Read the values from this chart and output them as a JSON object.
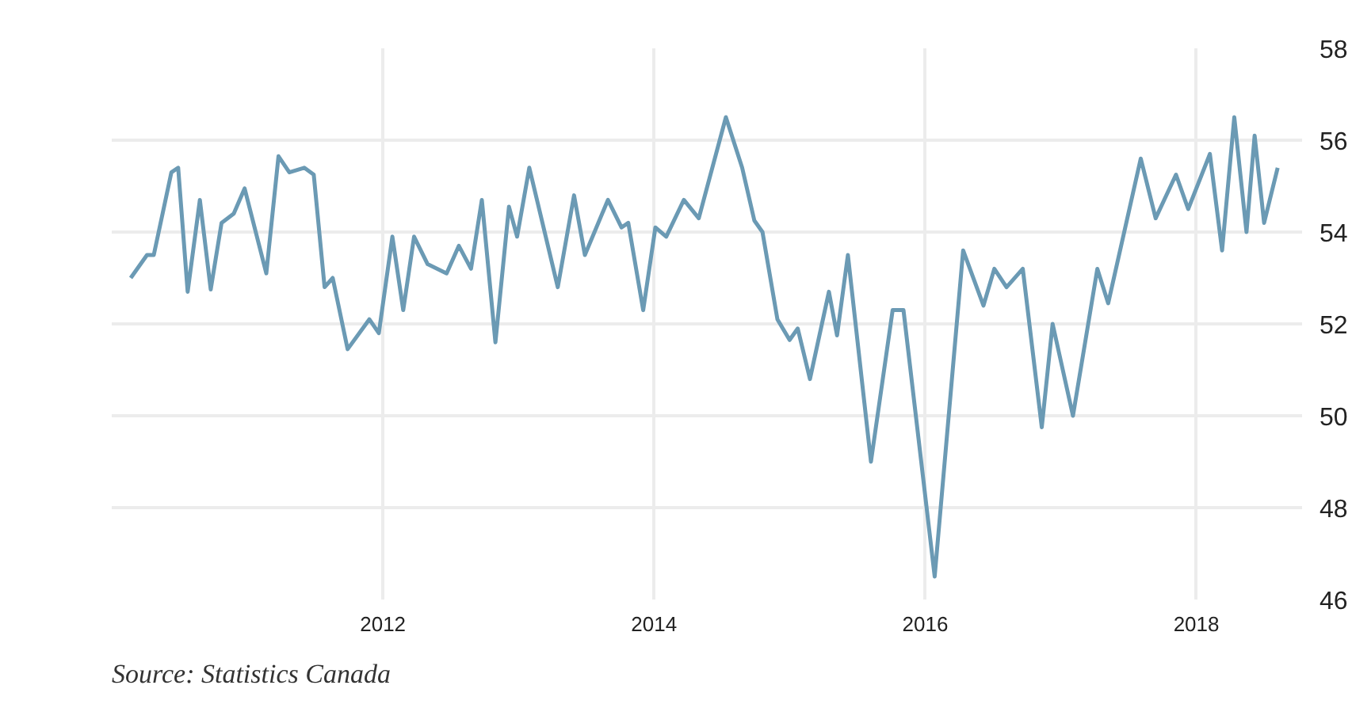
{
  "chart_data": {
    "type": "line",
    "annotations": [
      "Source: Statistics Canada"
    ],
    "x": [
      2010.14,
      2010.26,
      2010.31,
      2010.44,
      2010.49,
      2010.56,
      2010.65,
      2010.73,
      2010.81,
      2010.9,
      2010.98,
      2011.14,
      2011.23,
      2011.31,
      2011.42,
      2011.49,
      2011.57,
      2011.63,
      2011.74,
      2011.9,
      2011.97,
      2012.07,
      2012.15,
      2012.23,
      2012.33,
      2012.47,
      2012.56,
      2012.65,
      2012.73,
      2012.83,
      2012.93,
      2012.99,
      2013.08,
      2013.29,
      2013.41,
      2013.49,
      2013.66,
      2013.76,
      2013.81,
      2013.92,
      2014.01,
      2014.09,
      2014.22,
      2014.33,
      2014.53,
      2014.65,
      2014.74,
      2014.8,
      2014.91,
      2015.0,
      2015.06,
      2015.15,
      2015.29,
      2015.35,
      2015.43,
      2015.6,
      2015.76,
      2015.84,
      2016.07,
      2016.28,
      2016.43,
      2016.51,
      2016.6,
      2016.72,
      2016.86,
      2016.94,
      2017.09,
      2017.27,
      2017.35,
      2017.59,
      2017.7,
      2017.85,
      2017.94,
      2018.1,
      2018.19,
      2018.28,
      2018.37,
      2018.43,
      2018.5,
      2018.6
    ],
    "series": [
      {
        "color": "#6b9ab4",
        "values": [
          53.0,
          53.5,
          53.5,
          55.3,
          55.4,
          52.7,
          54.7,
          52.75,
          54.2,
          54.4,
          54.95,
          53.1,
          55.65,
          55.3,
          55.4,
          55.25,
          52.8,
          53.0,
          51.45,
          52.1,
          51.8,
          53.9,
          52.3,
          53.9,
          53.3,
          53.1,
          53.7,
          53.2,
          54.7,
          51.6,
          54.55,
          53.9,
          55.4,
          52.8,
          54.8,
          53.5,
          54.7,
          54.1,
          54.2,
          52.3,
          54.1,
          53.9,
          54.7,
          54.3,
          56.5,
          55.4,
          54.25,
          54.0,
          52.1,
          51.65,
          51.9,
          50.8,
          52.7,
          51.75,
          53.5,
          49.0,
          52.3,
          52.3,
          46.5,
          53.6,
          52.4,
          53.2,
          52.8,
          53.2,
          49.75,
          52.0,
          50.0,
          53.2,
          52.45,
          55.6,
          54.3,
          55.25,
          54.5,
          55.7,
          53.6,
          56.5,
          54.0,
          56.1,
          54.2,
          55.4
        ]
      }
    ],
    "xlim": [
      2010.0,
      2018.78
    ],
    "xticks": [
      2012,
      2014,
      2016,
      2018
    ],
    "ylim": [
      46,
      58
    ],
    "yticks": [
      46,
      48,
      50,
      52,
      54,
      56,
      58
    ],
    "grid": true,
    "marker": "none",
    "line_style": "solid"
  }
}
